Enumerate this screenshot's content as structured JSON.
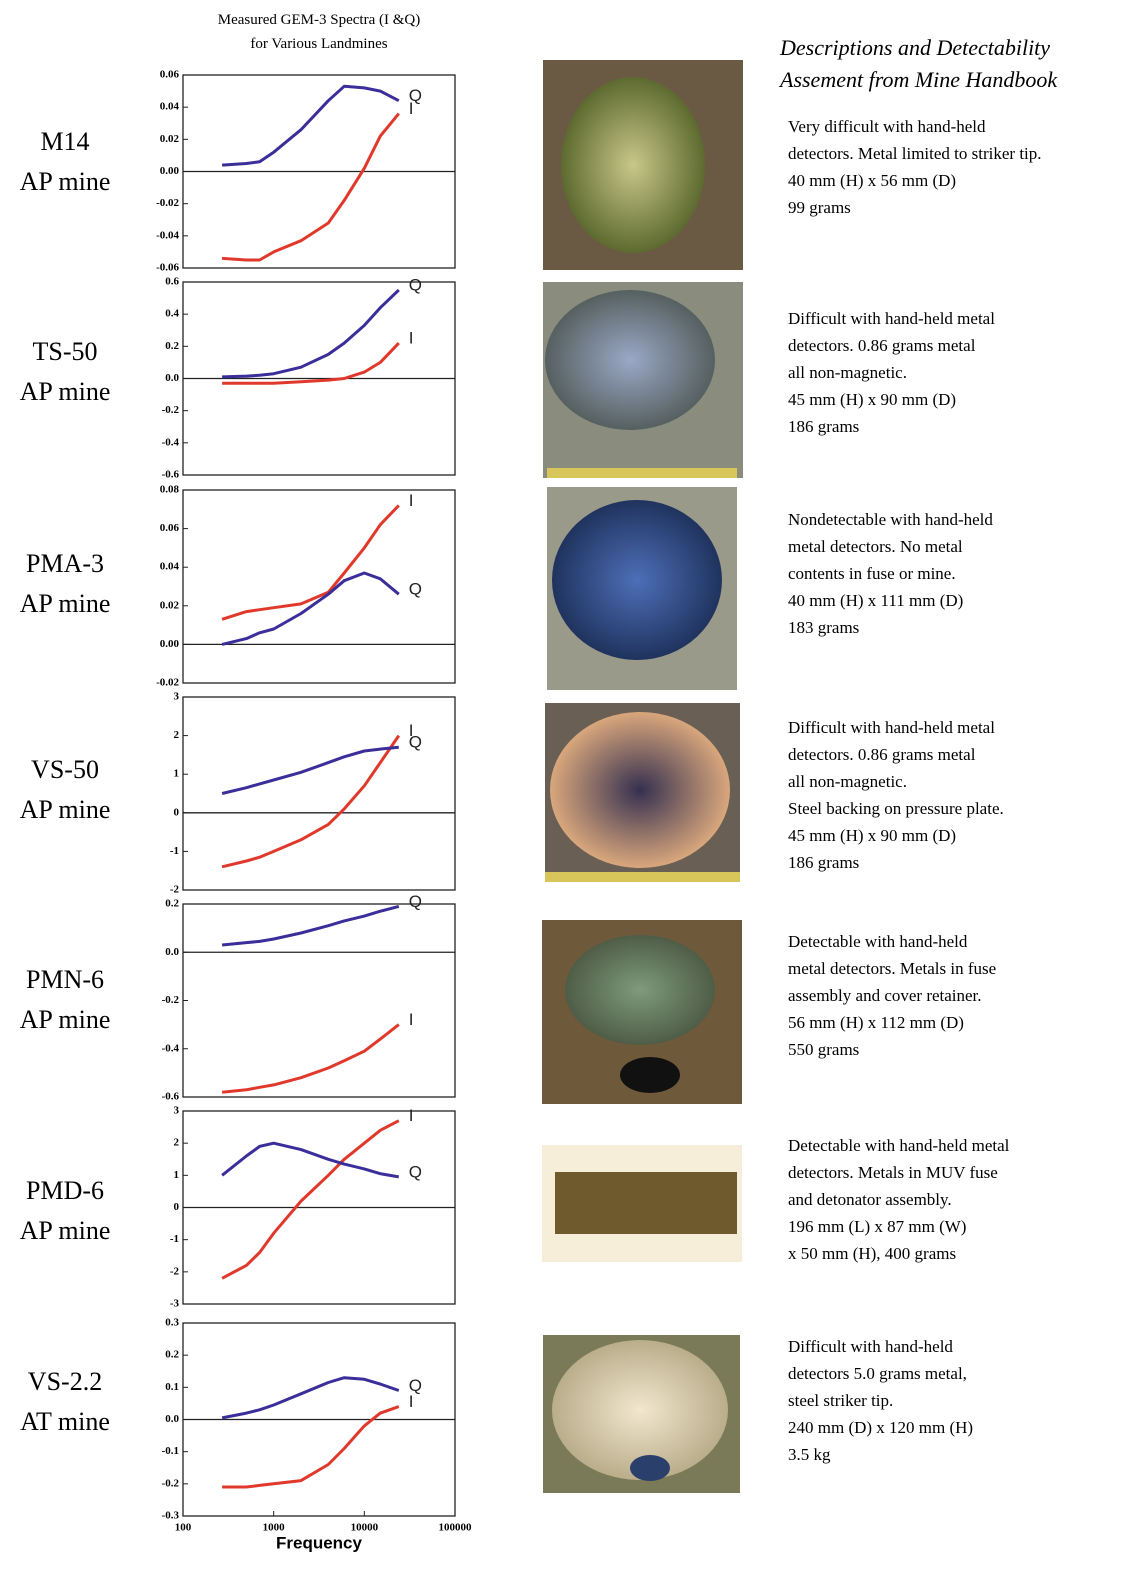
{
  "header": {
    "title_lines": [
      "Measured GEM-3 Spectra (I &Q)",
      "for Various Landmines"
    ]
  },
  "descriptions_heading": [
    "Descriptions and Detectability",
    "Assement from Mine Handbook"
  ],
  "mines": [
    {
      "name": "M14",
      "kind": "AP mine",
      "description": [
        "Very difficult with hand-held",
        "detectors. Metal limited to striker tip.",
        "40 mm (H) x 56 mm (D)",
        "99 grams"
      ]
    },
    {
      "name": "TS-50",
      "kind": "AP mine",
      "description": [
        "Difficult with hand-held metal",
        "detectors. 0.86 grams metal",
        "all non-magnetic.",
        "45 mm (H) x 90 mm (D)",
        "186 grams"
      ]
    },
    {
      "name": "PMA-3",
      "kind": "AP mine",
      "description": [
        "Nondetectable with hand-held",
        "metal detectors. No metal",
        "contents in fuse or mine.",
        "40 mm (H) x 111 mm (D)",
        "183 grams"
      ]
    },
    {
      "name": "VS-50",
      "kind": "AP mine",
      "description": [
        "Difficult with hand-held metal",
        "detectors. 0.86 grams metal",
        "all non-magnetic.",
        "Steel backing on pressure plate.",
        "45 mm (H) x 90 mm (D)",
        "186 grams"
      ]
    },
    {
      "name": "PMN-6",
      "kind": "AP mine",
      "description": [
        "Detectable with hand-held",
        "metal detectors. Metals in fuse",
        "assembly and cover retainer.",
        "56 mm (H) x 112 mm (D)",
        "550 grams"
      ]
    },
    {
      "name": "PMD-6",
      "kind": "AP mine",
      "description": [
        "Detectable with hand-held metal",
        "detectors. Metals in MUV fuse",
        "and detonator assembly.",
        "196 mm (L) x 87 mm (W)",
        "x 50 mm (H), 400 grams"
      ]
    },
    {
      "name": "VS-2.2",
      "kind": "AT mine",
      "description": [
        "Difficult with hand-held",
        "detectors 5.0 grams metal,",
        "steel striker tip.",
        "240 mm (D) x 120 mm (H)",
        "3.5 kg"
      ]
    }
  ],
  "chart_data": [
    {
      "type": "line",
      "log_x": true,
      "xlim": [
        100,
        100000
      ],
      "x": [
        270,
        500,
        700,
        1000,
        2000,
        4000,
        6000,
        10000,
        15000,
        24000
      ],
      "ylim": [
        -0.06,
        0.06
      ],
      "yticks": [
        0.06,
        0.04,
        0.02,
        {
          "value": 0,
          "label": "0.00"
        },
        -0.02,
        -0.04,
        -0.06
      ],
      "series": [
        {
          "name": "Q",
          "color": "#3a2f9a",
          "values": [
            0.004,
            0.005,
            0.006,
            0.012,
            0.026,
            0.044,
            0.053,
            0.052,
            0.05,
            0.044
          ]
        },
        {
          "name": "I",
          "color": "#e0392b",
          "values": [
            -0.054,
            -0.055,
            -0.055,
            -0.05,
            -0.043,
            -0.032,
            -0.018,
            0.002,
            0.022,
            0.036
          ]
        }
      ]
    },
    {
      "type": "line",
      "log_x": true,
      "xlim": [
        100,
        100000
      ],
      "x": [
        270,
        500,
        700,
        1000,
        2000,
        4000,
        6000,
        10000,
        15000,
        24000
      ],
      "ylim": [
        -0.6,
        0.6
      ],
      "yticks": [
        0.6,
        0.4,
        0.2,
        {
          "value": 0,
          "label": "0.0"
        },
        -0.2,
        -0.4,
        -0.6
      ],
      "series": [
        {
          "name": "Q",
          "color": "#3a2f9a",
          "values": [
            0.01,
            0.015,
            0.02,
            0.03,
            0.07,
            0.15,
            0.22,
            0.33,
            0.44,
            0.55
          ]
        },
        {
          "name": "I",
          "color": "#e0392b",
          "values": [
            -0.03,
            -0.03,
            -0.03,
            -0.03,
            -0.02,
            -0.01,
            0.0,
            0.04,
            0.1,
            0.22
          ]
        }
      ]
    },
    {
      "type": "line",
      "log_x": true,
      "xlim": [
        100,
        100000
      ],
      "x": [
        270,
        500,
        700,
        1000,
        2000,
        4000,
        6000,
        10000,
        15000,
        24000
      ],
      "ylim": [
        -0.02,
        0.08
      ],
      "yticks": [
        0.08,
        0.06,
        0.04,
        0.02,
        {
          "value": 0,
          "label": "0.00"
        },
        -0.02
      ],
      "series": [
        {
          "name": "I",
          "color": "#e0392b",
          "values": [
            0.013,
            0.017,
            0.018,
            0.019,
            0.021,
            0.027,
            0.037,
            0.05,
            0.062,
            0.072
          ]
        },
        {
          "name": "Q",
          "color": "#3a2f9a",
          "values": [
            0.0,
            0.003,
            0.006,
            0.008,
            0.016,
            0.026,
            0.033,
            0.037,
            0.034,
            0.026
          ]
        }
      ]
    },
    {
      "type": "line",
      "log_x": true,
      "xlim": [
        100,
        100000
      ],
      "x": [
        270,
        500,
        700,
        1000,
        2000,
        4000,
        6000,
        10000,
        15000,
        24000
      ],
      "ylim": [
        -2,
        3
      ],
      "yticks": [
        3,
        2,
        1,
        0,
        -1,
        -2
      ],
      "series": [
        {
          "name": "I",
          "color": "#e0392b",
          "values": [
            -1.4,
            -1.25,
            -1.15,
            -1.0,
            -0.7,
            -0.3,
            0.1,
            0.7,
            1.3,
            2.0
          ]
        },
        {
          "name": "Q",
          "color": "#3a2f9a",
          "values": [
            0.5,
            0.65,
            0.75,
            0.85,
            1.05,
            1.3,
            1.45,
            1.6,
            1.65,
            1.7
          ]
        }
      ]
    },
    {
      "type": "line",
      "log_x": true,
      "xlim": [
        100,
        100000
      ],
      "x": [
        270,
        500,
        700,
        1000,
        2000,
        4000,
        6000,
        10000,
        15000,
        24000
      ],
      "ylim": [
        -0.6,
        0.2
      ],
      "yticks": [
        0.2,
        {
          "value": 0,
          "label": "0.0"
        },
        -0.2,
        -0.4,
        -0.6
      ],
      "series": [
        {
          "name": "Q",
          "color": "#3a2f9a",
          "values": [
            0.03,
            0.04,
            0.045,
            0.055,
            0.08,
            0.11,
            0.13,
            0.15,
            0.17,
            0.19
          ]
        },
        {
          "name": "I",
          "color": "#e0392b",
          "values": [
            -0.58,
            -0.57,
            -0.56,
            -0.55,
            -0.52,
            -0.48,
            -0.45,
            -0.41,
            -0.36,
            -0.3
          ]
        }
      ]
    },
    {
      "type": "line",
      "log_x": true,
      "xlim": [
        100,
        100000
      ],
      "x": [
        270,
        500,
        700,
        1000,
        2000,
        4000,
        6000,
        10000,
        15000,
        24000
      ],
      "ylim": [
        -3,
        3
      ],
      "yticks": [
        3,
        2,
        1,
        0,
        -1,
        -2,
        -3
      ],
      "series": [
        {
          "name": "I",
          "color": "#e0392b",
          "values": [
            -2.2,
            -1.8,
            -1.4,
            -0.8,
            0.2,
            1.0,
            1.5,
            2.0,
            2.4,
            2.7
          ]
        },
        {
          "name": "Q",
          "color": "#3a2f9a",
          "values": [
            1.0,
            1.6,
            1.9,
            2.0,
            1.8,
            1.5,
            1.35,
            1.2,
            1.05,
            0.95
          ]
        }
      ]
    },
    {
      "type": "line",
      "log_x": true,
      "xlim": [
        100,
        100000
      ],
      "x": [
        270,
        500,
        700,
        1000,
        2000,
        4000,
        6000,
        10000,
        15000,
        24000
      ],
      "ylim": [
        -0.3,
        0.3
      ],
      "yticks": [
        0.3,
        0.2,
        0.1,
        {
          "value": 0,
          "label": "0.0"
        },
        -0.1,
        -0.2,
        -0.3
      ],
      "xticks": [
        100,
        1000,
        10000,
        100000
      ],
      "xlabel": "Frequency",
      "series": [
        {
          "name": "Q",
          "color": "#3a2f9a",
          "values": [
            0.005,
            0.02,
            0.03,
            0.045,
            0.08,
            0.115,
            0.13,
            0.125,
            0.11,
            0.09
          ]
        },
        {
          "name": "I",
          "color": "#e0392b",
          "values": [
            -0.21,
            -0.21,
            -0.205,
            -0.2,
            -0.19,
            -0.14,
            -0.09,
            -0.02,
            0.02,
            0.04
          ]
        }
      ]
    }
  ]
}
